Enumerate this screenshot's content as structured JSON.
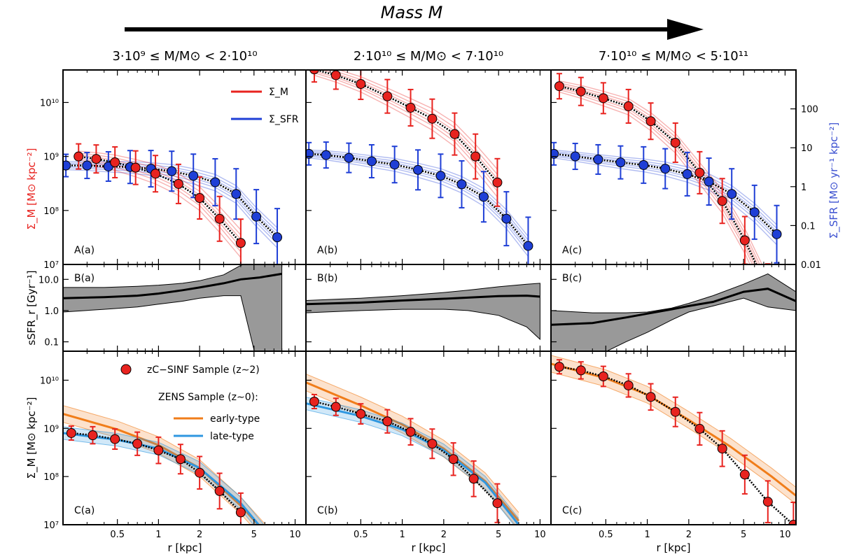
{
  "figure": {
    "arrow_label": "Mass M",
    "columns": [
      "3·10⁹ ≤ M/M⊙ < 2·10¹⁰",
      "2·10¹⁰ ≤ M/M⊙ < 7·10¹⁰",
      "7·10¹⁰ ≤ M/M⊙ < 5·10¹¹"
    ]
  },
  "colors": {
    "mass": "#e8231f",
    "sfr": "#1f3fd6",
    "early": "#f07d1a",
    "late": "#2f97e0",
    "band": "#999999",
    "mass_text": "#e8231f",
    "sfr_text": "#3a4fd0"
  },
  "chart_data": [
    {
      "type": "scatter",
      "row": "A",
      "xscale": "log",
      "xlim": [
        0.2,
        12
      ],
      "ylim_left": [
        10000000,
        40000000000
      ],
      "ylim_right": [
        0.01,
        1000
      ],
      "ylabel_left": "Σ_M  [M⊙ kpc⁻²]",
      "ylabel_right": "Σ_SFR [M⊙ yr⁻¹ kpc⁻²]",
      "yticks_left": [
        "10⁷",
        "10⁸",
        "10⁹",
        "10¹⁰"
      ],
      "yticks_right": [
        "0.01",
        "0.1",
        "1",
        "10",
        "100"
      ],
      "legend": [
        {
          "name": "Σ_M",
          "color": "mass"
        },
        {
          "name": "Σ_SFR",
          "color": "sfr"
        }
      ],
      "legend_position": "top-right",
      "panels": [
        {
          "label": "A(a)",
          "mass": {
            "x": [
              0.26,
              0.35,
              0.48,
              0.68,
              0.95,
              1.4,
              2.0,
              2.8,
              4.0
            ],
            "y": [
              1000000000,
              900000000,
              780000000,
              620000000,
              480000000,
              310000000,
              170000000,
              70000000,
              25000000
            ]
          },
          "sfr": {
            "x": [
              0.21,
              0.3,
              0.43,
              0.62,
              0.88,
              1.25,
              1.8,
              2.6,
              3.7,
              5.2,
              7.4
            ],
            "y": [
              3.5,
              3.5,
              3.3,
              3.2,
              2.9,
              2.5,
              1.9,
              1.3,
              0.65,
              0.17,
              0.05
            ]
          }
        },
        {
          "label": "A(b)",
          "mass": {
            "x": [
              0.23,
              0.33,
              0.5,
              0.78,
              1.15,
              1.65,
              2.4,
              3.4,
              4.9
            ],
            "y": [
              41000000000,
              32000000000,
              22000000000,
              13000000000,
              8000000000,
              5000000000,
              2600000000,
              1000000000,
              330000000
            ]
          },
          "sfr": {
            "x": [
              0.21,
              0.28,
              0.41,
              0.6,
              0.88,
              1.3,
              1.9,
              2.7,
              3.9,
              5.7,
              8.2
            ],
            "y": [
              7.0,
              6.5,
              5.5,
              4.5,
              3.7,
              2.7,
              1.9,
              1.15,
              0.55,
              0.15,
              0.03
            ]
          }
        },
        {
          "label": "A(c)",
          "mass": {
            "x": [
              0.23,
              0.33,
              0.48,
              0.73,
              1.06,
              1.6,
              2.4,
              3.5,
              5.1,
              7.5,
              11.5
            ],
            "y": [
              20000000000,
              16000000000,
              12000000000,
              8500000000,
              4500000000,
              1800000000,
              500000000,
              150000000,
              28000000,
              3500000,
              400000
            ]
          },
          "sfr": {
            "x": [
              0.21,
              0.3,
              0.44,
              0.64,
              0.94,
              1.35,
              1.95,
              2.8,
              4.1,
              6.0,
              8.7
            ],
            "y": [
              7.0,
              6.0,
              5.0,
              4.2,
              3.6,
              2.9,
              2.1,
              1.35,
              0.65,
              0.22,
              0.06
            ]
          }
        }
      ]
    },
    {
      "type": "line",
      "row": "B",
      "xscale": "log",
      "xlim": [
        0.2,
        12
      ],
      "ylim": [
        0.05,
        30
      ],
      "ylabel": "sSFR_r [Gyr⁻¹]",
      "yticks": [
        "0.1",
        "1.0",
        "10.0"
      ],
      "panels": [
        {
          "label": "B(a)",
          "x": [
            0.2,
            0.4,
            0.7,
            1.0,
            1.5,
            2.0,
            3.0,
            4.0,
            5.5,
            8.0
          ],
          "y": [
            2.5,
            2.7,
            3.0,
            3.5,
            4.5,
            5.5,
            7.5,
            10.0,
            11.5,
            15.0
          ],
          "lower": [
            0.9,
            1.1,
            1.3,
            1.6,
            2.0,
            2.5,
            3.0,
            3.0,
            0.01,
            0.01
          ],
          "upper": [
            5.5,
            5.5,
            6.0,
            6.5,
            7.5,
            9.0,
            14.0,
            28.0,
            45.0,
            50.0
          ]
        },
        {
          "label": "B(b)",
          "x": [
            0.2,
            0.5,
            1.0,
            2.0,
            3.0,
            5.0,
            8.0,
            10.0
          ],
          "y": [
            1.6,
            1.8,
            2.1,
            2.4,
            2.6,
            2.9,
            3.0,
            2.8
          ],
          "lower": [
            0.85,
            1.0,
            1.1,
            1.1,
            1.0,
            0.7,
            0.3,
            0.12
          ],
          "upper": [
            2.1,
            2.5,
            3.0,
            3.8,
            4.5,
            5.8,
            7.0,
            7.5
          ]
        },
        {
          "label": "B(c)",
          "x": [
            0.2,
            0.4,
            0.7,
            1.0,
            1.5,
            2.0,
            3.0,
            5.0,
            7.5,
            12.0
          ],
          "y": [
            0.35,
            0.4,
            0.6,
            0.8,
            1.1,
            1.4,
            1.9,
            4.0,
            5.0,
            2.0
          ],
          "lower": [
            0.02,
            0.03,
            0.1,
            0.2,
            0.5,
            0.9,
            1.4,
            2.5,
            1.3,
            1.0
          ],
          "upper": [
            1.0,
            0.85,
            0.85,
            0.9,
            1.2,
            1.7,
            3.0,
            7.0,
            15.0,
            4.0
          ]
        }
      ]
    },
    {
      "type": "scatter",
      "row": "C",
      "xscale": "log",
      "xlim": [
        0.2,
        12
      ],
      "ylim": [
        10000000,
        40000000000
      ],
      "xlabel": "r  [kpc]",
      "xticks": [
        "0.5",
        "1",
        "2",
        "5",
        "10"
      ],
      "ylabel": "Σ_M  [M⊙ kpc⁻²]",
      "yticks": [
        "10⁷",
        "10⁸",
        "10⁹",
        "10¹⁰"
      ],
      "legend": [
        {
          "name": "zC−SINF Sample (z∼2)",
          "marker": "circle",
          "color": "mass"
        },
        {
          "name": "ZENS Sample (z∼0):",
          "marker": "none"
        },
        {
          "name": "early-type",
          "color": "early"
        },
        {
          "name": "late-type",
          "color": "late"
        }
      ],
      "panels": [
        {
          "label": "C(a)",
          "points": {
            "x": [
              0.23,
              0.33,
              0.48,
              0.7,
              1.0,
              1.45,
              2.0,
              2.8,
              4.0
            ],
            "y": [
              800000000,
              720000000,
              600000000,
              480000000,
              350000000,
              230000000,
              120000000,
              50000000,
              18000000
            ]
          },
          "early": {
            "x": [
              0.2,
              0.5,
              1.0,
              2.0,
              4.0,
              6.0
            ],
            "y": [
              2000000000,
              950000000,
              450000000,
              150000000,
              25000000,
              7000000
            ]
          },
          "late": {
            "x": [
              0.2,
              0.5,
              1.0,
              2.0,
              4.0,
              6.0
            ],
            "y": [
              800000000,
              580000000,
              380000000,
              150000000,
              28000000,
              7000000
            ]
          }
        },
        {
          "label": "C(b)",
          "points": {
            "x": [
              0.23,
              0.33,
              0.5,
              0.78,
              1.15,
              1.65,
              2.35,
              3.3,
              4.9
            ],
            "y": [
              3600000000,
              2800000000,
              2000000000,
              1400000000,
              850000000,
              480000000,
              230000000,
              90000000,
              28000000
            ]
          },
          "early": {
            "x": [
              0.2,
              0.5,
              1.0,
              2.0,
              4.0,
              7.0
            ],
            "y": [
              9000000000,
              3000000000,
              1200000000,
              380000000,
              80000000,
              12000000
            ]
          },
          "late": {
            "x": [
              0.2,
              0.5,
              1.0,
              2.0,
              4.0,
              7.0
            ],
            "y": [
              3300000000,
              1800000000,
              950000000,
              350000000,
              75000000,
              10000000
            ]
          }
        },
        {
          "label": "C(c)",
          "points": {
            "x": [
              0.23,
              0.33,
              0.48,
              0.73,
              1.06,
              1.6,
              2.4,
              3.5,
              5.1,
              7.5,
              11.5
            ],
            "y": [
              19000000000,
              16000000000,
              12000000000,
              7800000000,
              4500000000,
              2200000000,
              980000000,
              380000000,
              110000000,
              30000000,
              10000000
            ]
          },
          "early": {
            "x": [
              0.2,
              0.5,
              1.0,
              2.0,
              4.0,
              8.0,
              12.0
            ],
            "y": [
              22000000000,
              11000000000,
              5000000000,
              1500000000,
              420000000,
              100000000,
              40000000
            ]
          }
        }
      ]
    }
  ]
}
